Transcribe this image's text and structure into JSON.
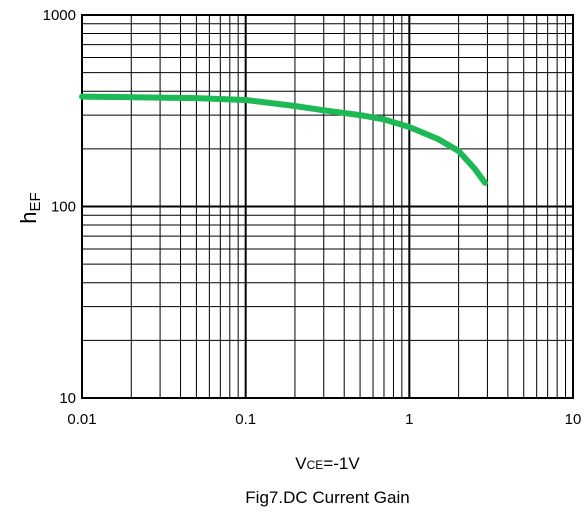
{
  "chart_data": {
    "type": "line",
    "xscale": "log",
    "yscale": "log",
    "xlim": [
      0.01,
      10
    ],
    "ylim": [
      10,
      1000
    ],
    "xticks": [
      "0.01",
      "0.1",
      "1",
      "10"
    ],
    "yticks": [
      "10",
      "100",
      "1000"
    ],
    "ylabel": "h",
    "ylabel_sub": "EF",
    "condition": "V",
    "condition_sub": "CE",
    "condition_rest": "=-1V",
    "caption": "Fig7.DC Current Gain",
    "grid": true,
    "series": [
      {
        "color": "#1db954",
        "x": [
          0.01,
          0.02,
          0.05,
          0.1,
          0.2,
          0.3,
          0.5,
          0.7,
          1.0,
          1.5,
          2.0,
          2.5,
          2.9
        ],
        "y": [
          375,
          372,
          368,
          360,
          335,
          318,
          300,
          285,
          260,
          225,
          195,
          158,
          133
        ]
      }
    ]
  }
}
